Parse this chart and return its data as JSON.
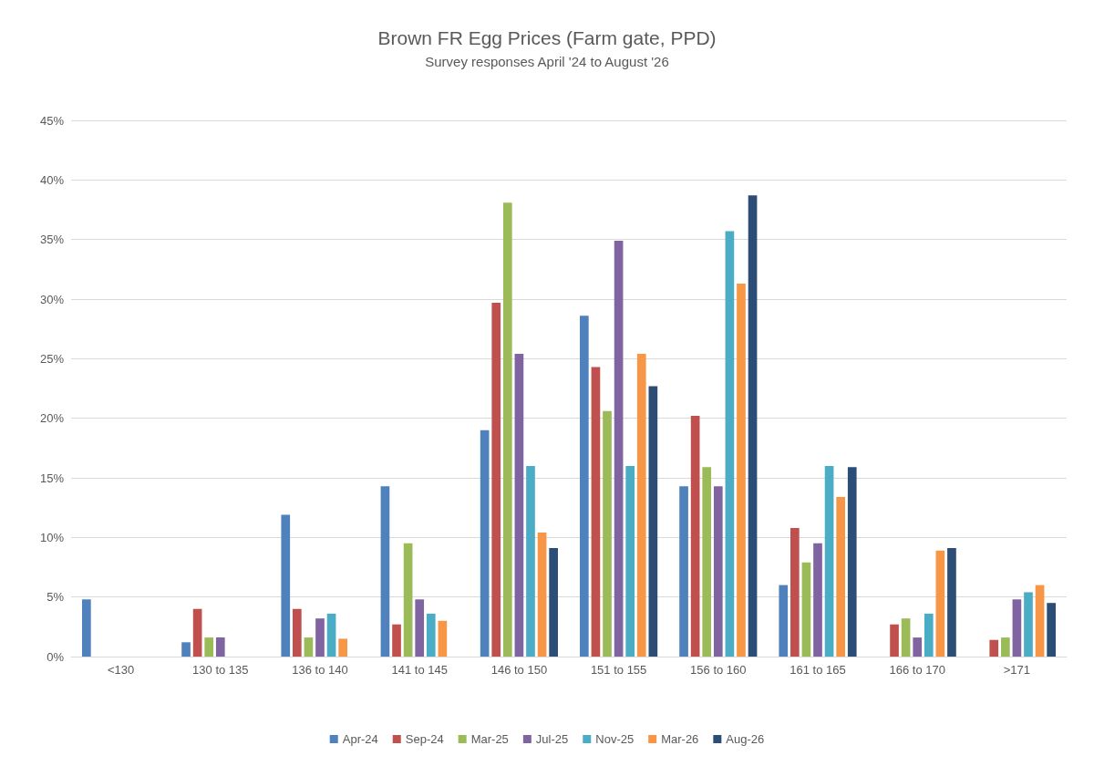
{
  "chart_data": {
    "type": "bar",
    "title": "Brown FR Egg Prices (Farm gate, PPD)",
    "subtitle": "Survey responses April '24 to August '26",
    "categories": [
      "<130",
      "130 to 135",
      "136 to 140",
      "141 to 145",
      "146 to 150",
      "151 to 155",
      "156 to 160",
      "161 to 165",
      "166 to 170",
      ">171"
    ],
    "series": [
      {
        "name": "Apr-24",
        "color": "#4f81bd",
        "values": [
          4.8,
          1.2,
          11.9,
          14.3,
          19.0,
          28.6,
          14.3,
          6.0,
          0,
          0
        ]
      },
      {
        "name": "Sep-24",
        "color": "#c0504d",
        "values": [
          0,
          4.0,
          4.0,
          2.7,
          29.7,
          24.3,
          20.2,
          10.8,
          2.7,
          1.4
        ]
      },
      {
        "name": "Mar-25",
        "color": "#9bbb59",
        "values": [
          0,
          1.6,
          1.6,
          9.5,
          38.1,
          20.6,
          15.9,
          7.9,
          3.2,
          1.6
        ]
      },
      {
        "name": "Jul-25",
        "color": "#8064a2",
        "values": [
          0,
          1.6,
          3.2,
          4.8,
          25.4,
          34.9,
          14.3,
          9.5,
          1.6,
          4.8
        ]
      },
      {
        "name": "Nov-25",
        "color": "#4bacc6",
        "values": [
          0,
          0,
          3.6,
          3.6,
          16.0,
          16.0,
          35.7,
          16.0,
          3.6,
          5.4
        ]
      },
      {
        "name": "Mar-26",
        "color": "#f79646",
        "values": [
          0,
          0,
          1.5,
          3.0,
          10.4,
          25.4,
          31.3,
          13.4,
          8.9,
          6.0
        ]
      },
      {
        "name": "Aug-26",
        "color": "#2c4d75",
        "values": [
          0,
          0,
          0,
          0,
          9.1,
          22.7,
          38.7,
          15.9,
          9.1,
          4.5
        ]
      }
    ],
    "ylim": [
      0,
      45
    ],
    "yticks": [
      {
        "value": 0,
        "label": "0%"
      },
      {
        "value": 5,
        "label": "5%"
      },
      {
        "value": 10,
        "label": "10%"
      },
      {
        "value": 15,
        "label": "15%"
      },
      {
        "value": 20,
        "label": "20%"
      },
      {
        "value": 25,
        "label": "25%"
      },
      {
        "value": 30,
        "label": "30%"
      },
      {
        "value": 35,
        "label": "35%"
      },
      {
        "value": 40,
        "label": "40%"
      },
      {
        "value": 45,
        "label": "45%"
      }
    ],
    "grid": "y",
    "legend": "bottom"
  }
}
